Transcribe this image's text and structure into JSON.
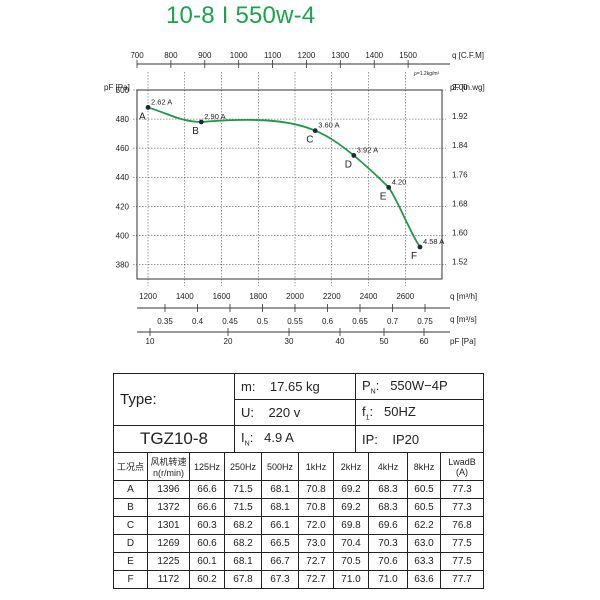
{
  "title": "10-8 I 550w-4",
  "chart_data": {
    "type": "line",
    "cfm_axis": {
      "label": "q",
      "unit": "[C.F.M]",
      "ticks": [
        700,
        800,
        900,
        1000,
        1100,
        1200,
        1300,
        1400,
        1500
      ],
      "range": [
        700,
        1600
      ]
    },
    "air_density_note": "ρ=1.2kg/m³",
    "pressure_axis": {
      "label": "pF [Pa]",
      "ticks": [
        380,
        400,
        420,
        440,
        460,
        480,
        500
      ],
      "range": [
        370,
        500
      ]
    },
    "inwg_axis": {
      "unit": "pF [in.wg]",
      "ticks": [
        "2.00",
        "1.92",
        "1.84",
        "1.76",
        "1.68",
        "1.60",
        "1.52"
      ]
    },
    "flow_axis": {
      "label": "q",
      "unit": "[m³/h]",
      "ticks": [
        1200,
        1400,
        1600,
        1800,
        2000,
        2200,
        2400,
        2600
      ],
      "range": [
        1140,
        2800
      ]
    },
    "m3s_axis": {
      "unit": "q [m³/s]",
      "ticks": [
        "0.35",
        "0.4",
        "0.45",
        "0.5",
        "0.55",
        "0.6",
        "0.65",
        "0.7",
        "0.75"
      ]
    },
    "pa_axis": {
      "unit": "pF [Pa]",
      "ticks": [
        10,
        20,
        30,
        40,
        50,
        60
      ],
      "range": [
        10,
        60
      ]
    },
    "points": [
      {
        "label": "A",
        "flow": 1200,
        "pressure": 488,
        "current": "2.62 A"
      },
      {
        "label": "B",
        "flow": 1490,
        "pressure": 478,
        "current": "2.90 A"
      },
      {
        "label": "C",
        "flow": 2110,
        "pressure": 472,
        "current": "3.60 A"
      },
      {
        "label": "D",
        "flow": 2320,
        "pressure": 455,
        "current": "3.92 A"
      },
      {
        "label": "E",
        "flow": 2510,
        "pressure": 433,
        "current": "4.20"
      },
      {
        "label": "F",
        "flow": 2680,
        "pressure": 392,
        "current": "4.58 A"
      }
    ]
  },
  "spec": {
    "type_label": "Type:",
    "type_value": "TGZ10-8",
    "m_label": "m:",
    "m_value": "17.65  kg",
    "pn_label": "P",
    "pn_sub": "N",
    "pn_value": "550W−4P",
    "u_label": "U:",
    "u_value": "220  v",
    "f_label": "f",
    "f_sub": "1",
    "f_value": "50HZ",
    "in_label": "I",
    "in_sub": "N",
    "in_value": "4.9  A",
    "ip_label": "IP:",
    "ip_value": "IP20"
  },
  "noise_table": {
    "headers": [
      "工况点",
      "风机转速 n(r/min)",
      "125Hz",
      "250Hz",
      "500Hz",
      "1kHz",
      "2kHz",
      "4kHz",
      "8kHz",
      "LwadB (A)"
    ],
    "rows": [
      [
        "A",
        "1396",
        "66.6",
        "71.5",
        "68.1",
        "70.8",
        "69.2",
        "68.3",
        "60.5",
        "77.3"
      ],
      [
        "B",
        "1372",
        "66.6",
        "71.5",
        "68.1",
        "70.8",
        "69.2",
        "68.3",
        "60.5",
        "77.3"
      ],
      [
        "C",
        "1301",
        "60.3",
        "68.2",
        "66.1",
        "72.0",
        "69.8",
        "69.6",
        "62.2",
        "76.8"
      ],
      [
        "D",
        "1269",
        "60.6",
        "68.2",
        "66.5",
        "73.0",
        "70.4",
        "70.3",
        "63.0",
        "77.5"
      ],
      [
        "E",
        "1225",
        "60.1",
        "68.1",
        "66.7",
        "72.7",
        "70.5",
        "70.6",
        "63.3",
        "77.5"
      ],
      [
        "F",
        "1172",
        "60.2",
        "67.8",
        "67.3",
        "72.7",
        "71.0",
        "71.0",
        "63.6",
        "77.7"
      ]
    ]
  }
}
